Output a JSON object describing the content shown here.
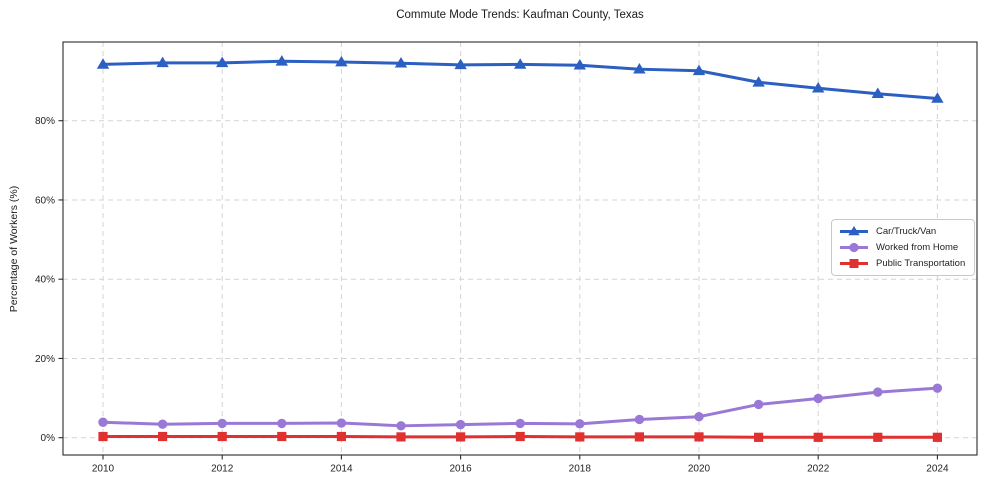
{
  "chart_data": {
    "type": "line",
    "title": "Commute Mode Trends: Kaufman County, Texas",
    "xlabel": "",
    "ylabel": "Percentage of Workers (%)",
    "x": [
      2010,
      2011,
      2012,
      2013,
      2014,
      2015,
      2016,
      2017,
      2018,
      2019,
      2020,
      2021,
      2022,
      2023,
      2024
    ],
    "x_tick_labels": [
      "2010",
      "2012",
      "2014",
      "2016",
      "2018",
      "2020",
      "2022",
      "2024"
    ],
    "y_ticks": [
      0,
      20,
      40,
      60,
      80
    ],
    "y_tick_labels": [
      "0%",
      "20%",
      "40%",
      "60%",
      "80%"
    ],
    "ylim": [
      -4.4,
      99.9
    ],
    "grid": "dashed-both-axes",
    "legend_position": "middle-right",
    "series": [
      {
        "name": "Car/Truck/Van",
        "color": "#2b5fc2",
        "marker": "triangle",
        "values": [
          94.2,
          94.6,
          94.6,
          95.0,
          94.8,
          94.5,
          94.1,
          94.2,
          94.0,
          93.0,
          92.6,
          89.7,
          88.2,
          86.8,
          85.6
        ]
      },
      {
        "name": "Worked from Home",
        "color": "#9a79d6",
        "marker": "circle",
        "values": [
          3.9,
          3.4,
          3.6,
          3.6,
          3.7,
          3.0,
          3.3,
          3.6,
          3.5,
          4.6,
          5.3,
          8.4,
          9.9,
          11.5,
          12.5
        ]
      },
      {
        "name": "Public Transportation",
        "color": "#e03131",
        "marker": "square",
        "values": [
          0.3,
          0.3,
          0.3,
          0.3,
          0.3,
          0.2,
          0.2,
          0.3,
          0.2,
          0.2,
          0.2,
          0.1,
          0.1,
          0.1,
          0.1
        ]
      }
    ]
  }
}
